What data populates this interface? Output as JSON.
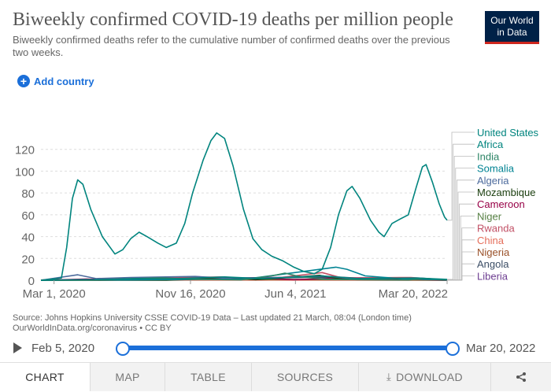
{
  "header": {
    "title": "Biweekly confirmed COVID-19 deaths per million people",
    "subtitle": "Biweekly confirmed deaths refer to the cumulative number of confirmed deaths over the previous two weeks.",
    "logo_line1": "Our World",
    "logo_line2": "in Data"
  },
  "controls": {
    "add_country": "Add country"
  },
  "source": {
    "line1": "Source: Johns Hopkins University CSSE COVID-19 Data – Last updated 21 March, 08:04 (London time)",
    "line2": "OurWorldInData.org/coronavirus • CC BY"
  },
  "timeline": {
    "start": "Feb 5, 2020",
    "end": "Mar 20, 2022",
    "range_fraction": [
      0,
      1
    ]
  },
  "tabs": [
    {
      "label": "CHART",
      "active": true
    },
    {
      "label": "MAP",
      "active": false
    },
    {
      "label": "TABLE",
      "active": false
    },
    {
      "label": "SOURCES",
      "active": false
    },
    {
      "label": "DOWNLOAD",
      "active": false,
      "icon": "download-icon"
    },
    {
      "label": "",
      "active": false,
      "icon": "share-icon"
    }
  ],
  "colors": {
    "accent": "#1b6fd9",
    "logo_bg": "#002147",
    "logo_underline": "#ce261e"
  },
  "chart_data": {
    "type": "line",
    "ylim": [
      0,
      140
    ],
    "yticks": [
      0,
      20,
      40,
      60,
      80,
      100,
      120
    ],
    "xticks": [
      "Mar 1, 2020",
      "Nov 16, 2020",
      "Jun 4, 2021",
      "Mar 20, 2022"
    ],
    "x_range": [
      "2020-02-05",
      "2022-03-20"
    ],
    "grid": true,
    "legend_position": "right",
    "series": [
      {
        "name": "United States",
        "color": "#00847e",
        "points": [
          [
            "2020-02-05",
            0
          ],
          [
            "2020-03-15",
            2
          ],
          [
            "2020-03-25",
            30
          ],
          [
            "2020-04-05",
            75
          ],
          [
            "2020-04-15",
            92
          ],
          [
            "2020-04-25",
            88
          ],
          [
            "2020-05-10",
            65
          ],
          [
            "2020-06-01",
            40
          ],
          [
            "2020-06-25",
            24
          ],
          [
            "2020-07-10",
            28
          ],
          [
            "2020-07-25",
            38
          ],
          [
            "2020-08-10",
            44
          ],
          [
            "2020-08-25",
            40
          ],
          [
            "2020-09-15",
            34
          ],
          [
            "2020-10-01",
            30
          ],
          [
            "2020-10-20",
            34
          ],
          [
            "2020-11-05",
            52
          ],
          [
            "2020-11-20",
            80
          ],
          [
            "2020-12-10",
            110
          ],
          [
            "2020-12-25",
            128
          ],
          [
            "2021-01-05",
            135
          ],
          [
            "2021-01-20",
            130
          ],
          [
            "2021-02-05",
            105
          ],
          [
            "2021-02-25",
            65
          ],
          [
            "2021-03-15",
            38
          ],
          [
            "2021-04-01",
            28
          ],
          [
            "2021-04-20",
            22
          ],
          [
            "2021-05-10",
            18
          ],
          [
            "2021-06-01",
            12
          ],
          [
            "2021-06-20",
            8
          ],
          [
            "2021-07-10",
            6
          ],
          [
            "2021-07-25",
            10
          ],
          [
            "2021-08-10",
            30
          ],
          [
            "2021-08-25",
            60
          ],
          [
            "2021-09-10",
            82
          ],
          [
            "2021-09-20",
            86
          ],
          [
            "2021-10-05",
            75
          ],
          [
            "2021-10-25",
            55
          ],
          [
            "2021-11-10",
            44
          ],
          [
            "2021-11-20",
            40
          ],
          [
            "2021-12-05",
            52
          ],
          [
            "2021-12-20",
            56
          ],
          [
            "2022-01-05",
            60
          ],
          [
            "2022-01-20",
            85
          ],
          [
            "2022-02-01",
            104
          ],
          [
            "2022-02-08",
            106
          ],
          [
            "2022-02-20",
            90
          ],
          [
            "2022-03-05",
            70
          ],
          [
            "2022-03-15",
            58
          ],
          [
            "2022-03-20",
            55
          ]
        ]
      },
      {
        "name": "Africa",
        "color": "#00847e",
        "points": [
          [
            "2020-02-05",
            0
          ],
          [
            "2020-06-01",
            0.5
          ],
          [
            "2020-08-01",
            1.5
          ],
          [
            "2020-10-01",
            1
          ],
          [
            "2021-01-20",
            3
          ],
          [
            "2021-04-01",
            1.5
          ],
          [
            "2021-07-25",
            4
          ],
          [
            "2021-10-01",
            1.5
          ],
          [
            "2022-01-20",
            2
          ],
          [
            "2022-03-20",
            0.8
          ]
        ]
      },
      {
        "name": "India",
        "color": "#2c8465",
        "points": [
          [
            "2020-02-05",
            0
          ],
          [
            "2020-05-01",
            0.2
          ],
          [
            "2020-08-01",
            1.5
          ],
          [
            "2020-09-20",
            2.2
          ],
          [
            "2020-11-15",
            1
          ],
          [
            "2021-02-20",
            0.3
          ],
          [
            "2021-04-20",
            4
          ],
          [
            "2021-05-15",
            6.5
          ],
          [
            "2021-06-15",
            3
          ],
          [
            "2021-08-01",
            1
          ],
          [
            "2021-10-01",
            0.5
          ],
          [
            "2022-01-05",
            0.2
          ],
          [
            "2022-02-05",
            1.5
          ],
          [
            "2022-03-20",
            0.4
          ]
        ]
      },
      {
        "name": "Somalia",
        "color": "#008393",
        "points": [
          [
            "2020-02-05",
            0
          ],
          [
            "2020-05-01",
            0.5
          ],
          [
            "2020-07-01",
            0.2
          ],
          [
            "2021-03-01",
            1
          ],
          [
            "2021-08-20",
            12
          ],
          [
            "2021-09-10",
            10
          ],
          [
            "2021-10-15",
            4
          ],
          [
            "2022-01-01",
            1
          ],
          [
            "2022-03-20",
            0.3
          ]
        ]
      },
      {
        "name": "Algeria",
        "color": "#4c6a9c",
        "points": [
          [
            "2020-02-05",
            0
          ],
          [
            "2020-04-15",
            5
          ],
          [
            "2020-05-20",
            1.5
          ],
          [
            "2020-07-25",
            2.5
          ],
          [
            "2020-11-25",
            3.5
          ],
          [
            "2021-02-20",
            1
          ],
          [
            "2021-07-25",
            4
          ],
          [
            "2021-10-01",
            1
          ],
          [
            "2022-01-25",
            2
          ],
          [
            "2022-03-20",
            0.3
          ]
        ]
      },
      {
        "name": "Mozambique",
        "color": "#183c0c",
        "points": [
          [
            "2020-02-05",
            0
          ],
          [
            "2020-10-01",
            0
          ],
          [
            "2021-02-05",
            2
          ],
          [
            "2021-03-20",
            0.5
          ],
          [
            "2021-07-20",
            4.5
          ],
          [
            "2021-09-01",
            1
          ],
          [
            "2022-01-10",
            1.5
          ],
          [
            "2022-03-20",
            0.2
          ]
        ]
      },
      {
        "name": "Cameroon",
        "color": "#970046",
        "points": [
          [
            "2020-02-05",
            0
          ],
          [
            "2020-05-01",
            1
          ],
          [
            "2020-07-01",
            0.5
          ],
          [
            "2021-03-20",
            2
          ],
          [
            "2021-06-01",
            0.5
          ],
          [
            "2021-09-15",
            2
          ],
          [
            "2022-01-05",
            1
          ],
          [
            "2022-03-20",
            0.1
          ]
        ]
      },
      {
        "name": "Niger",
        "color": "#578145",
        "points": [
          [
            "2020-02-05",
            0
          ],
          [
            "2020-04-20",
            0.5
          ],
          [
            "2021-01-05",
            0.8
          ],
          [
            "2022-01-01",
            0.5
          ],
          [
            "2022-03-20",
            0.1
          ]
        ]
      },
      {
        "name": "Rwanda",
        "color": "#c15065",
        "points": [
          [
            "2020-02-05",
            0
          ],
          [
            "2021-01-15",
            3
          ],
          [
            "2021-04-01",
            0.5
          ],
          [
            "2021-07-25",
            7
          ],
          [
            "2021-09-01",
            2
          ],
          [
            "2022-01-10",
            2.5
          ],
          [
            "2022-03-20",
            0.2
          ]
        ]
      },
      {
        "name": "China",
        "color": "#e56e5a",
        "points": [
          [
            "2020-02-05",
            0.2
          ],
          [
            "2020-02-20",
            0.5
          ],
          [
            "2020-04-01",
            0.2
          ],
          [
            "2022-03-20",
            0
          ]
        ]
      },
      {
        "name": "Nigeria",
        "color": "#9a5129",
        "points": [
          [
            "2020-02-05",
            0
          ],
          [
            "2021-02-01",
            0.5
          ],
          [
            "2022-03-20",
            0
          ]
        ]
      },
      {
        "name": "Angola",
        "color": "#3c4e66",
        "points": [
          [
            "2020-02-05",
            0
          ],
          [
            "2020-10-20",
            1.5
          ],
          [
            "2021-04-20",
            2
          ],
          [
            "2021-08-20",
            3
          ],
          [
            "2021-11-01",
            1
          ],
          [
            "2022-01-15",
            2
          ],
          [
            "2022-03-20",
            0.2
          ]
        ]
      },
      {
        "name": "Liberia",
        "color": "#6d3e91",
        "points": [
          [
            "2020-02-05",
            0
          ],
          [
            "2020-06-10",
            0.5
          ],
          [
            "2021-07-10",
            3
          ],
          [
            "2021-09-01",
            1
          ],
          [
            "2022-03-20",
            0
          ]
        ]
      }
    ],
    "legend_colors": [
      "#00847e",
      "#00847e",
      "#2c8465",
      "#008393",
      "#4c6a9c",
      "#183c0c",
      "#970046",
      "#578145",
      "#c15065",
      "#e56e5a",
      "#9a5129",
      "#3c4e66",
      "#6d3e91"
    ]
  }
}
